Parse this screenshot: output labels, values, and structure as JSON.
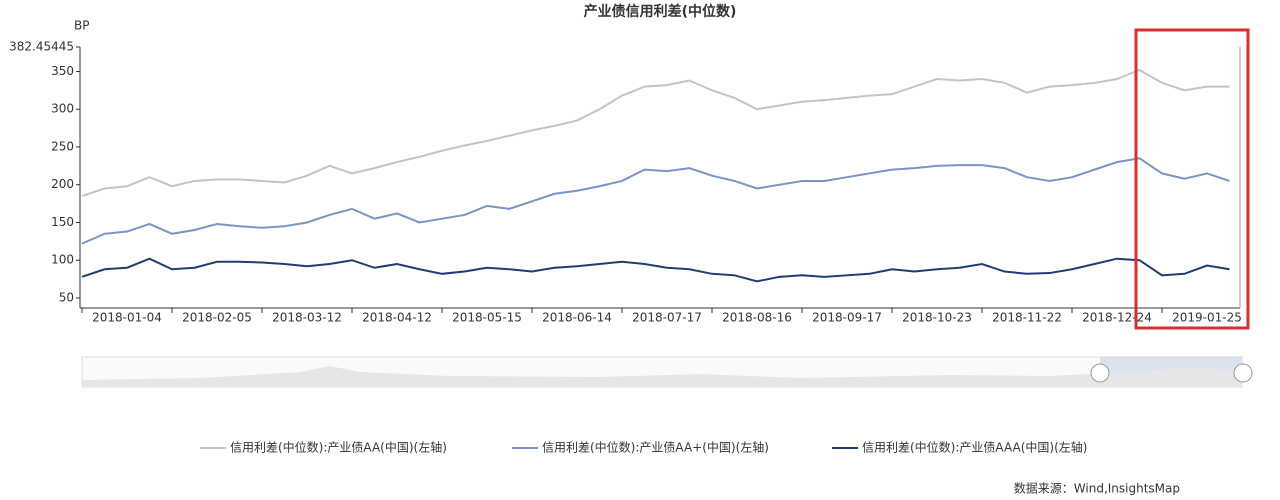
{
  "chart_data": {
    "type": "line",
    "title": "产业债信用利差(中位数)",
    "y_label": "BP",
    "source": "数据来源：Wind,InsightsMap",
    "categories": [
      null,
      null,
      "2018-01-04",
      null,
      null,
      null,
      "2018-02-05",
      null,
      null,
      null,
      "2018-03-12",
      null,
      null,
      null,
      "2018-04-12",
      null,
      null,
      null,
      "2018-05-15",
      null,
      null,
      null,
      "2018-06-14",
      null,
      null,
      null,
      "2018-07-17",
      null,
      null,
      null,
      "2018-08-16",
      null,
      null,
      null,
      "2018-09-17",
      null,
      null,
      null,
      "2018-10-23",
      null,
      null,
      null,
      "2018-11-22",
      null,
      null,
      null,
      "2018-12-24",
      null,
      null,
      null,
      "2019-01-25",
      null
    ],
    "series": [
      {
        "name": "信用利差(中位数):产业债AA(中国)(左轴)",
        "color": "#c4c4c4",
        "values": [
          185,
          195,
          198,
          210,
          198,
          205,
          207,
          207,
          205,
          203,
          212,
          225,
          215,
          222,
          230,
          237,
          245,
          252,
          258,
          265,
          272,
          278,
          285,
          300,
          318,
          330,
          332,
          338,
          325,
          315,
          300,
          305,
          310,
          312,
          315,
          318,
          320,
          330,
          340,
          338,
          340,
          335,
          322,
          330,
          332,
          335,
          340,
          352,
          335,
          325,
          330,
          330
        ]
      },
      {
        "name": "信用利差(中位数):产业债AA+(中国)(左轴)",
        "color": "#7b93c6",
        "values": [
          122,
          135,
          138,
          148,
          135,
          140,
          148,
          145,
          143,
          145,
          150,
          160,
          168,
          155,
          162,
          150,
          155,
          160,
          172,
          168,
          178,
          188,
          192,
          198,
          205,
          220,
          218,
          222,
          212,
          205,
          195,
          200,
          205,
          205,
          210,
          215,
          220,
          222,
          225,
          226,
          226,
          222,
          210,
          205,
          210,
          220,
          230,
          235,
          215,
          208,
          215,
          205
        ]
      },
      {
        "name": "信用利差(中位数):产业债AAA(中国)(左轴)",
        "color": "#1f3d73",
        "values": [
          78,
          88,
          90,
          102,
          88,
          90,
          98,
          98,
          97,
          95,
          92,
          95,
          100,
          90,
          95,
          88,
          82,
          85,
          90,
          88,
          85,
          90,
          92,
          95,
          98,
          95,
          90,
          88,
          82,
          80,
          72,
          78,
          80,
          78,
          80,
          82,
          88,
          85,
          88,
          90,
          95,
          85,
          82,
          83,
          88,
          95,
          102,
          100,
          80,
          82,
          93,
          88
        ]
      }
    ],
    "ylim": [
      36.7,
      382.45445
    ],
    "yticks": [
      50,
      100,
      150,
      200,
      250,
      300,
      350,
      382.45445
    ],
    "grid": false,
    "legend": "bottom"
  }
}
